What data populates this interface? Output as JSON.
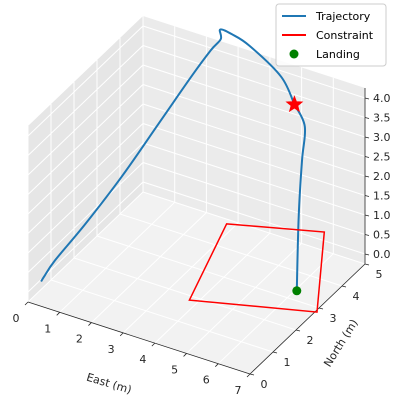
{
  "chart_data": {
    "type": "line",
    "projection": "3d",
    "xlabel": "East (m)",
    "ylabel": "North (m)",
    "zlabel": "",
    "xlim": [
      0,
      7
    ],
    "ylim": [
      0,
      5
    ],
    "zlim": [
      0,
      4
    ],
    "xticks": [
      "0",
      "1",
      "2",
      "3",
      "4",
      "5",
      "6",
      "7"
    ],
    "yticks": [
      "0",
      "1",
      "2",
      "3",
      "4",
      "5"
    ],
    "zticks": [
      "0.0",
      "0.5",
      "1.0",
      "1.5",
      "2.0",
      "2.5",
      "3.0",
      "3.5",
      "4.0"
    ],
    "grid": true,
    "legend": {
      "placement": "top-right",
      "entries": [
        {
          "label": "Trajectory",
          "color": "#1f77b4",
          "style": "line"
        },
        {
          "label": "Constraint",
          "color": "#ff0000",
          "style": "line"
        },
        {
          "label": "Landing",
          "color": "#008000",
          "style": "marker"
        }
      ]
    },
    "series": [
      {
        "name": "Trajectory",
        "color": "#1f77b4",
        "points": [
          {
            "x": 5.5,
            "y": 4.0,
            "z": 4.0
          },
          {
            "x": 4.5,
            "y": 4.8,
            "z": 4.0
          },
          {
            "x": 3.0,
            "y": 5.5,
            "z": 4.0
          },
          {
            "x": 2.3,
            "y": 5.7,
            "z": 4.0
          },
          {
            "x": 2.0,
            "y": 5.6,
            "z": 4.1
          },
          {
            "x": 2.2,
            "y": 5.35,
            "z": 4.05
          },
          {
            "x": 2.0,
            "y": 5.2,
            "z": 3.8
          },
          {
            "x": 1.7,
            "y": 4.8,
            "z": 3.3
          },
          {
            "x": 1.3,
            "y": 4.0,
            "z": 2.5
          },
          {
            "x": 0.8,
            "y": 3.0,
            "z": 1.5
          },
          {
            "x": 0.35,
            "y": 2.0,
            "z": 0.7
          },
          {
            "x": 0.05,
            "y": 1.1,
            "z": 0.2
          },
          {
            "x": 0.0,
            "y": 0.7,
            "z": 0.0
          },
          {
            "x": 0.05,
            "y": 0.5,
            "z": 0.0
          },
          {
            "x": 5.9,
            "y": 3.9,
            "z": 3.6
          },
          {
            "x": 6.1,
            "y": 3.5,
            "z": 3.0
          },
          {
            "x": 6.25,
            "y": 3.15,
            "z": 1.8
          },
          {
            "x": 6.3,
            "y": 3.0,
            "z": 0.0
          }
        ]
      },
      {
        "name": "Constraint",
        "color": "#ff0000",
        "points": [
          {
            "x": 3.0,
            "y": 4.5,
            "z": 0.0
          },
          {
            "x": 5.5,
            "y": 5.3,
            "z": 0.0
          },
          {
            "x": 7.3,
            "y": 2.5,
            "z": 0.0
          },
          {
            "x": 4.0,
            "y": 1.5,
            "z": 0.0
          }
        ]
      }
    ],
    "markers": [
      {
        "name": "Start",
        "shape": "star",
        "color": "#ff0000",
        "x": 5.5,
        "y": 4.0,
        "z": 4.0
      },
      {
        "name": "Landing",
        "shape": "circle",
        "color": "#008000",
        "x": 6.3,
        "y": 3.0,
        "z": 0.0
      }
    ]
  }
}
